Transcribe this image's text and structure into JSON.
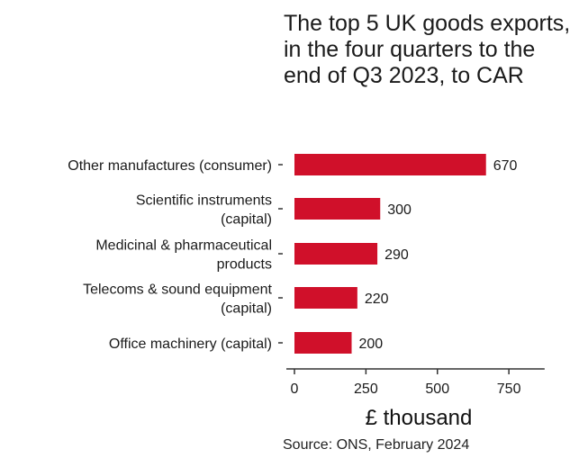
{
  "chart_data": {
    "type": "bar",
    "orientation": "horizontal",
    "title": "The top 5 UK goods exports, in the four quarters to the end of Q3 2023, to CAR",
    "categories": [
      [
        "Other manufactures (consumer)"
      ],
      [
        "Scientific instruments",
        "(capital)"
      ],
      [
        "Medicinal & pharmaceutical",
        "products"
      ],
      [
        "Telecoms & sound equipment",
        "(capital)"
      ],
      [
        "Office machinery (capital)"
      ]
    ],
    "values": [
      670,
      300,
      290,
      220,
      200
    ],
    "xlabel": "£ thousand",
    "ylabel": "",
    "xlim": [
      0,
      875
    ],
    "xticks": [
      0,
      250,
      500,
      750
    ],
    "grid": false,
    "legend": "none",
    "bar_color": "#d0102a",
    "source": "Source: ONS, February 2024"
  }
}
